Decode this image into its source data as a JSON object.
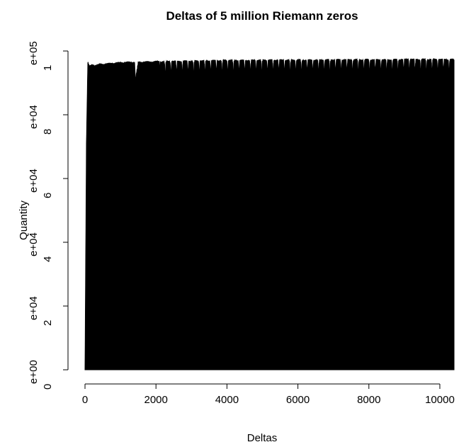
{
  "chart_data": {
    "type": "area",
    "title": "Deltas of 5 million Riemann zeros",
    "xlabel": "Deltas",
    "ylabel": "Quantity",
    "xlim": [
      0,
      10400
    ],
    "ylim": [
      0,
      100000
    ],
    "x_ticks": [
      0,
      2000,
      4000,
      6000,
      8000,
      10000
    ],
    "x_tick_labels": [
      "0",
      "2000",
      "4000",
      "6000",
      "8000",
      "10000"
    ],
    "y_ticks": [
      0,
      20000,
      40000,
      60000,
      80000,
      100000
    ],
    "y_tick_labels": [
      [
        "0",
        "e+00"
      ],
      [
        "2",
        "e+04"
      ],
      [
        "4",
        "e+04"
      ],
      [
        "6",
        "e+04"
      ],
      [
        "8",
        "e+04"
      ],
      [
        "1",
        "e+05"
      ]
    ],
    "grid": false,
    "series_color": "#000000",
    "envelope": {
      "x": [
        0,
        40,
        80,
        120,
        200,
        300,
        400,
        500,
        600,
        700,
        800,
        900,
        1000,
        1100,
        1200,
        1300,
        1400,
        1420,
        1500,
        1700,
        2000,
        2100,
        2200,
        2500,
        3000,
        3500,
        4000,
        4500,
        5000,
        5500,
        6000,
        6500,
        7000,
        7500,
        8000,
        8500,
        9000,
        9500,
        10000,
        10400
      ],
      "y": [
        0,
        71000,
        96500,
        95000,
        95500,
        95300,
        95600,
        95700,
        95800,
        95900,
        96000,
        96100,
        96200,
        96200,
        96300,
        96300,
        96300,
        90800,
        96300,
        96400,
        96500,
        96500,
        96500,
        96600,
        96700,
        96800,
        96900,
        96900,
        97000,
        97000,
        97000,
        97000,
        97100,
        97100,
        97100,
        97100,
        97200,
        97200,
        97200,
        97200
      ]
    },
    "dips": {
      "start": 2100,
      "spacing": 160,
      "end": 10400,
      "depth": 6500
    }
  }
}
